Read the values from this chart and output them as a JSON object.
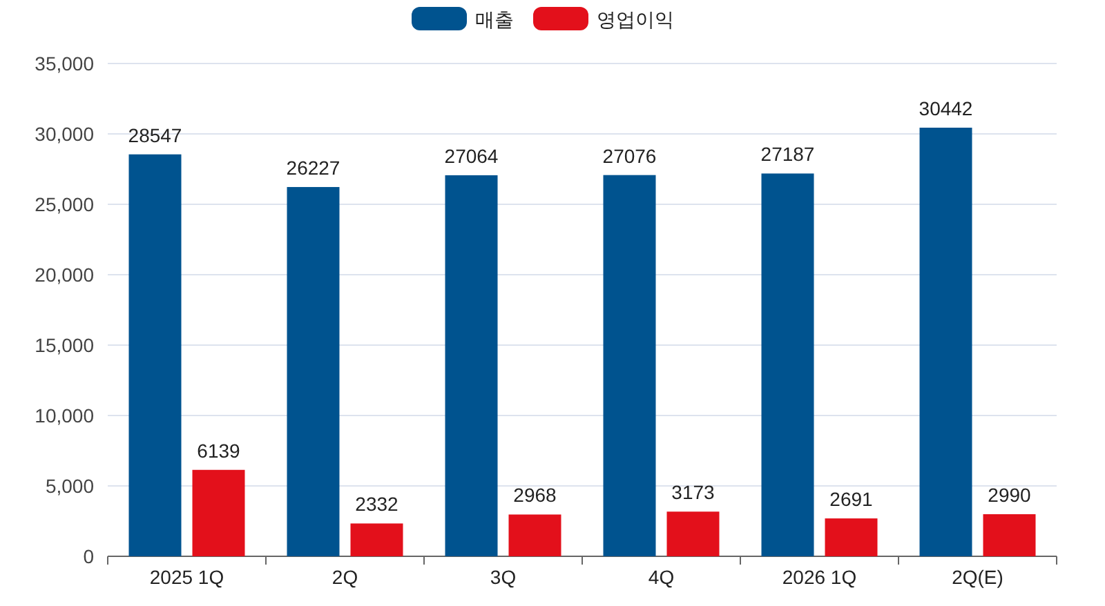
{
  "chart_data": {
    "type": "bar",
    "categories": [
      "2025 1Q",
      "2Q",
      "3Q",
      "4Q",
      "2026 1Q",
      "2Q(E)"
    ],
    "series": [
      {
        "name": "매출",
        "color": "#00538f",
        "values": [
          28547,
          26227,
          27064,
          27076,
          27187,
          30442
        ]
      },
      {
        "name": "영업이익",
        "color": "#e3101b",
        "values": [
          6139,
          2332,
          2968,
          3173,
          2691,
          2990
        ]
      }
    ],
    "ylim": [
      0,
      35000
    ],
    "yticks": [
      0,
      {
        "value": 5000,
        "label": "5,000"
      },
      {
        "value": 10000,
        "label": "10,000"
      },
      {
        "value": 15000,
        "label": "15,000"
      },
      {
        "value": 20000,
        "label": "20,000"
      },
      {
        "value": 25000,
        "label": "25,000"
      },
      {
        "value": 30000,
        "label": "30,000"
      },
      {
        "value": 35000,
        "label": "35,000"
      }
    ],
    "grid": "y",
    "legend": "top",
    "data_labels": true
  }
}
